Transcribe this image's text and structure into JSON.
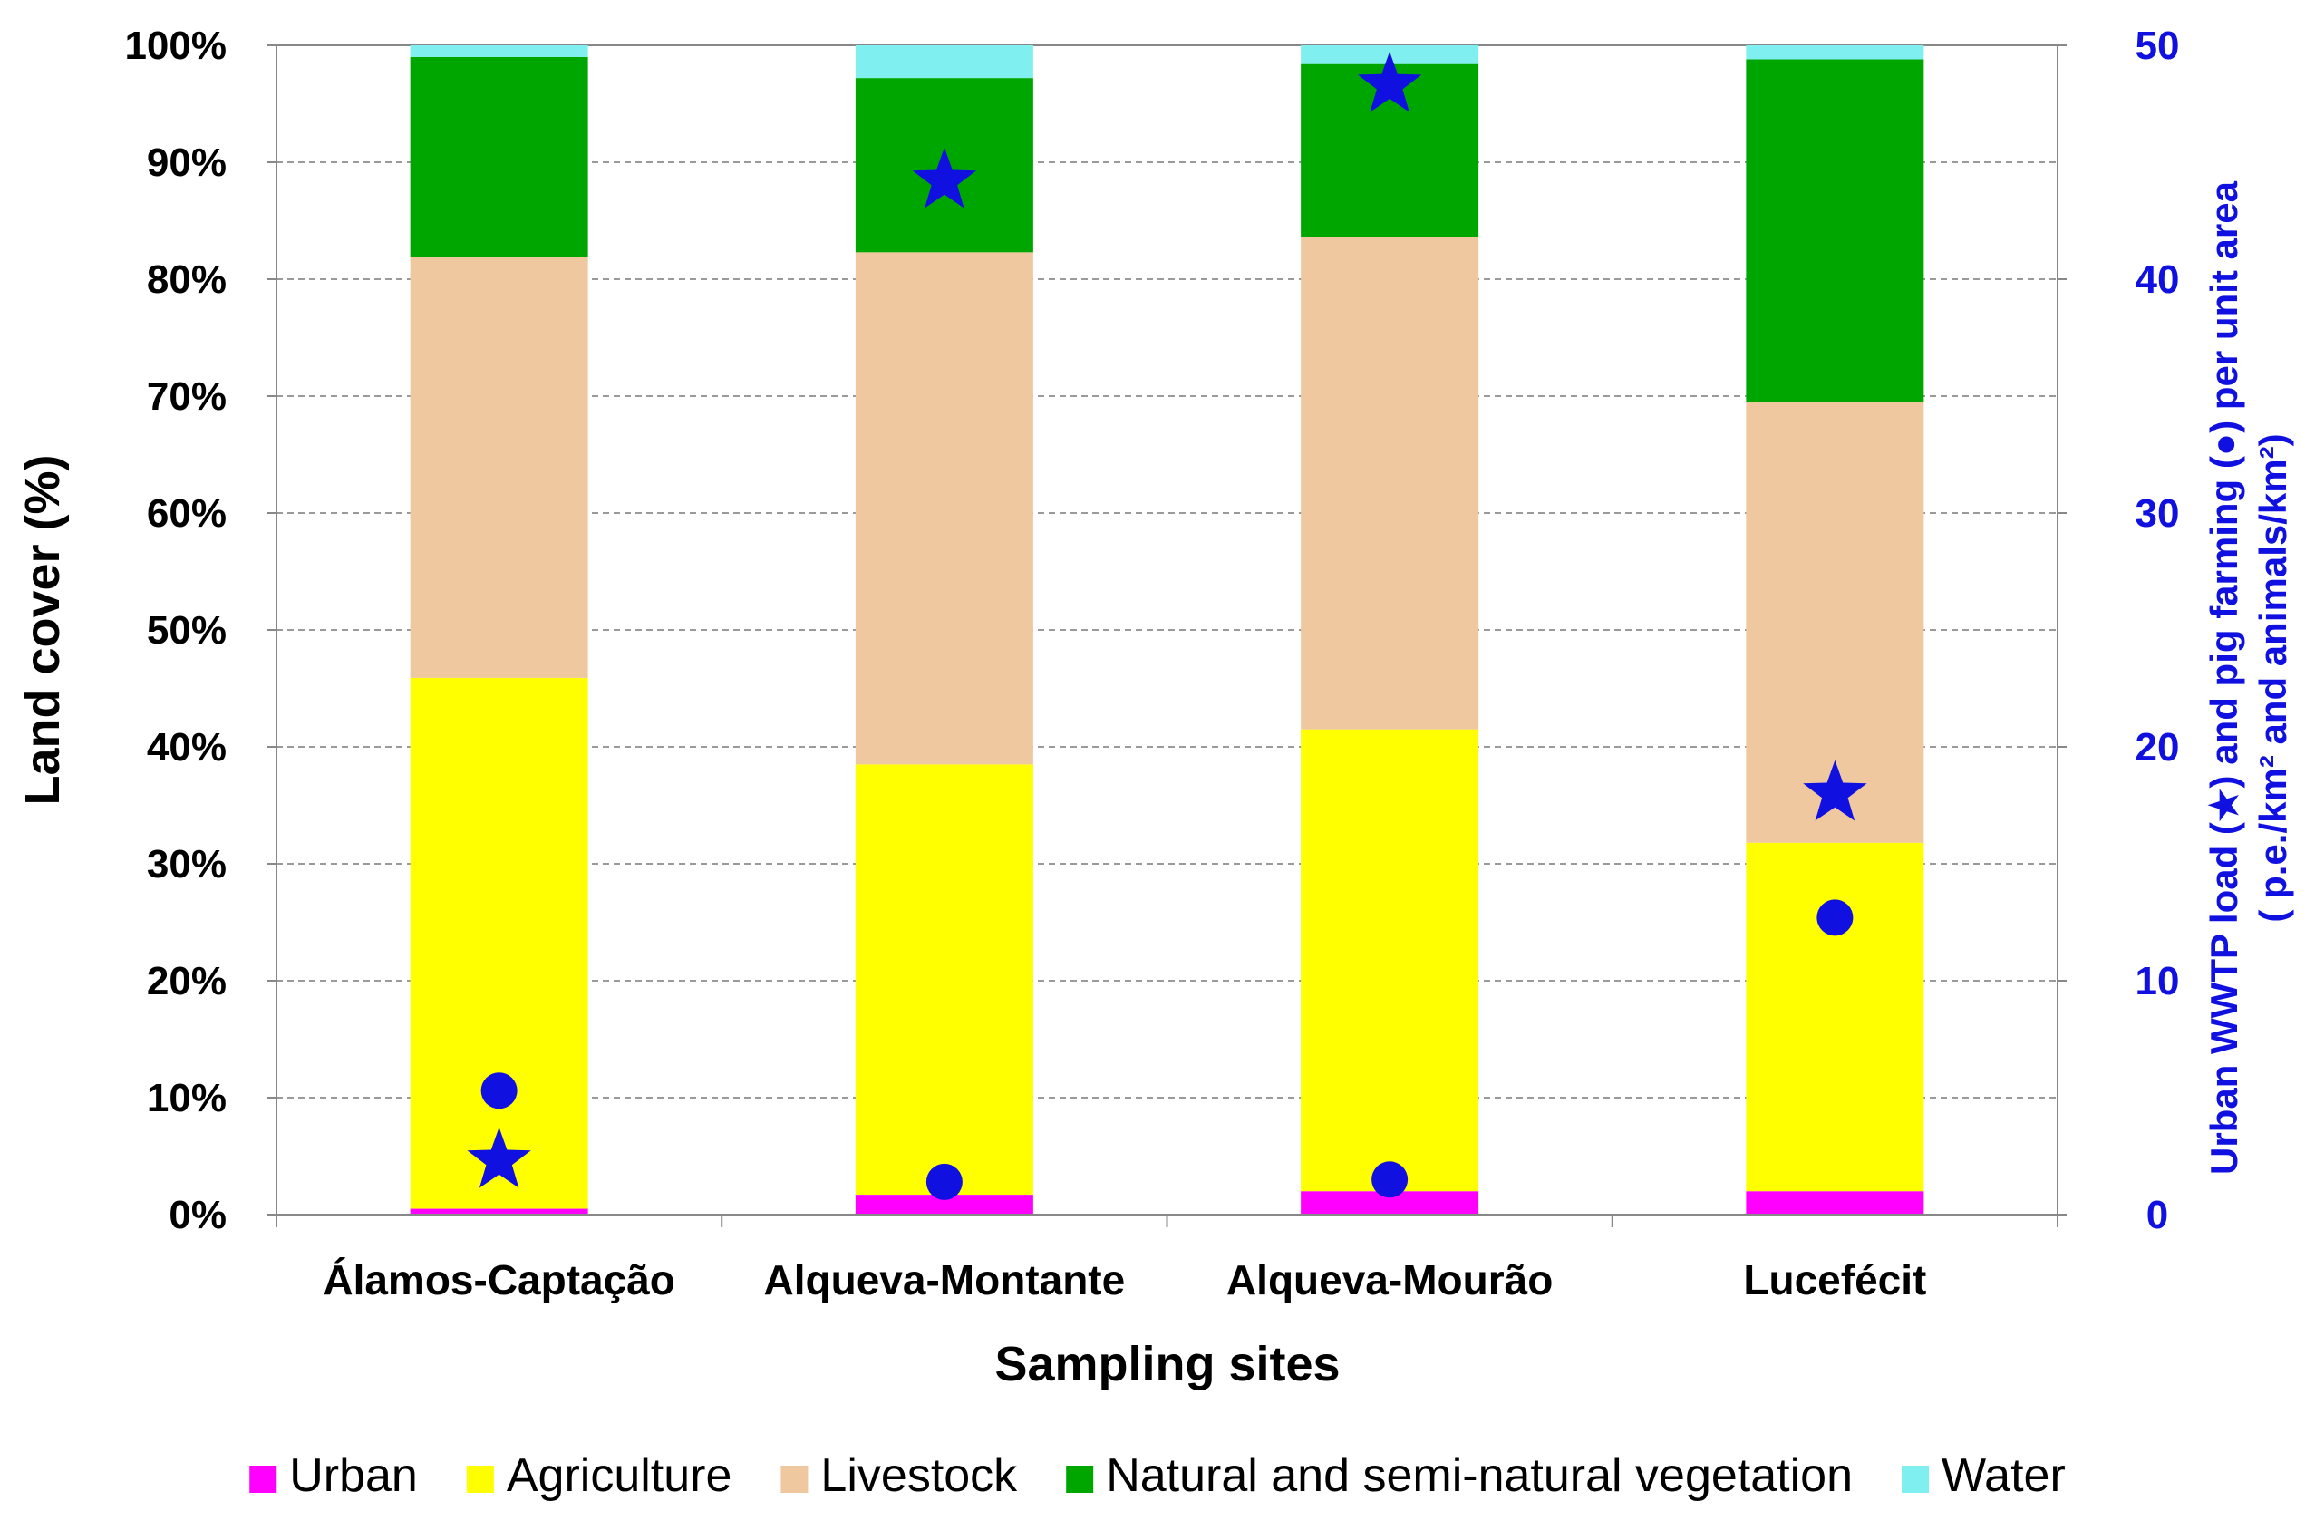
{
  "chart_data": {
    "type": "bar",
    "subtype": "stacked-100-with-secondary-points",
    "categories": [
      "Álamos-Captação",
      "Alqueva-Montante",
      "Alqueva-Mourão",
      "Lucefécit"
    ],
    "series": [
      {
        "name": "Urban",
        "color": "#FF00FF",
        "values": [
          0.5,
          1.7,
          2.0,
          2.0
        ]
      },
      {
        "name": "Agriculture",
        "color": "#FFFF00",
        "values": [
          45.4,
          36.8,
          39.5,
          29.8
        ]
      },
      {
        "name": "Livestock",
        "color": "#EFC8A0",
        "values": [
          36.0,
          43.8,
          42.1,
          37.7
        ]
      },
      {
        "name": "Natural and semi-natural vegetation",
        "color": "#00A600",
        "values": [
          17.1,
          14.9,
          14.8,
          29.3
        ]
      },
      {
        "name": "Water",
        "color": "#7FEFEF",
        "values": [
          1.0,
          2.8,
          1.6,
          1.2
        ]
      }
    ],
    "secondary_series": [
      {
        "name": "Urban WWTP load",
        "marker": "star",
        "color": "#1010E0",
        "values": [
          2.3,
          44.2,
          48.3,
          18.0
        ]
      },
      {
        "name": "Pig farming",
        "marker": "circle",
        "color": "#1010E0",
        "values": [
          5.3,
          1.4,
          1.5,
          12.7
        ]
      }
    ],
    "xlabel": "Sampling sites",
    "ylabel": "Land cover  (%)",
    "ylabel_right_line1": "Urban WWTP load (★) and pig farming (●) per unit area",
    "ylabel_right_line2": "( p.e./km² and animals/km²)",
    "ylim": [
      0,
      100
    ],
    "ylim_right": [
      0,
      50
    ],
    "yticks": [
      "0%",
      "10%",
      "20%",
      "30%",
      "40%",
      "50%",
      "60%",
      "70%",
      "80%",
      "90%",
      "100%"
    ],
    "yticks_right": [
      "0",
      "10",
      "20",
      "30",
      "40",
      "50"
    ],
    "grid": true,
    "legend_position": "bottom"
  }
}
